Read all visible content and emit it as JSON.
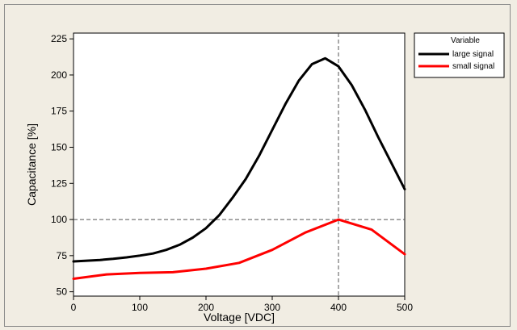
{
  "chart_data": {
    "type": "line",
    "xlabel": "Voltage [VDC]",
    "ylabel": "Capacitance [%]",
    "xlim": [
      0,
      500
    ],
    "ylim": [
      47,
      229
    ],
    "x_ticks": [
      0,
      100,
      200,
      300,
      400,
      500
    ],
    "y_ticks": [
      50,
      75,
      100,
      125,
      150,
      175,
      200,
      225
    ],
    "grid": false,
    "reference_lines": {
      "x": 400,
      "y": 100
    },
    "legend": {
      "title": "Variable",
      "placement": "outside-right-top"
    },
    "series": [
      {
        "name": "large signal",
        "color": "#000000",
        "x": [
          0,
          20,
          40,
          60,
          80,
          100,
          120,
          140,
          160,
          180,
          200,
          220,
          240,
          260,
          280,
          300,
          320,
          340,
          360,
          380,
          400,
          420,
          440,
          460,
          480,
          500
        ],
        "y": [
          71,
          71.5,
          72,
          72.8,
          73.8,
          75,
          76.5,
          79,
          82.5,
          87.5,
          94,
          103,
          115,
          128,
          144,
          162,
          180,
          196,
          207.5,
          211.5,
          206,
          193,
          176,
          157,
          139,
          121
        ]
      },
      {
        "name": "small signal",
        "color": "#ff0000",
        "x": [
          0,
          50,
          100,
          150,
          200,
          250,
          300,
          350,
          400,
          450,
          500
        ],
        "y": [
          59,
          62,
          63,
          63.5,
          66,
          70,
          79,
          91,
          100,
          93,
          76
        ]
      }
    ]
  }
}
